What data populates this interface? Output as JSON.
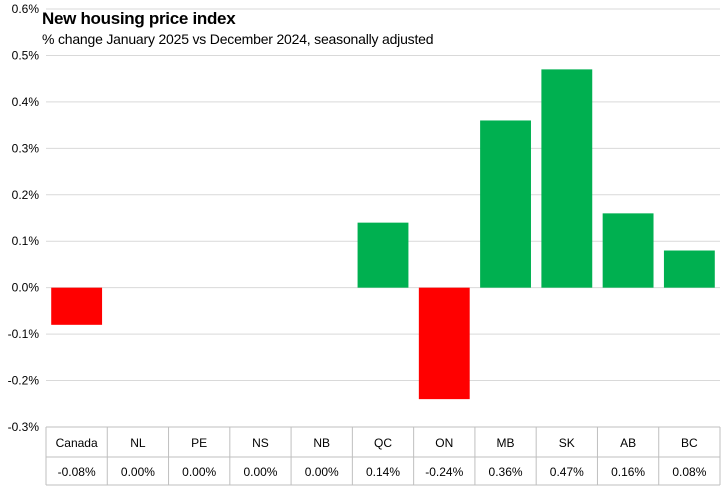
{
  "chart_data": {
    "type": "bar",
    "title": "New housing price index",
    "subtitle": "% change January 2025 vs December 2024, seasonally adjusted",
    "categories": [
      "Canada",
      "NL",
      "PE",
      "NS",
      "NB",
      "QC",
      "ON",
      "MB",
      "SK",
      "AB",
      "BC"
    ],
    "values": [
      -0.08,
      0.0,
      0.0,
      0.0,
      0.0,
      0.14,
      -0.24,
      0.36,
      0.47,
      0.16,
      0.08
    ],
    "value_labels": [
      "-0.08%",
      "0.00%",
      "0.00%",
      "0.00%",
      "0.00%",
      "0.14%",
      "-0.24%",
      "0.36%",
      "0.47%",
      "0.16%",
      "0.08%"
    ],
    "yticks": [
      0.6,
      0.5,
      0.4,
      0.3,
      0.2,
      0.1,
      0.0,
      -0.1,
      -0.2,
      -0.3
    ],
    "ytick_labels": [
      "0.6%",
      "0.5%",
      "0.4%",
      "0.3%",
      "0.2%",
      "0.1%",
      "0.0%",
      "-0.1%",
      "-0.2%",
      "-0.3%"
    ],
    "ylim": [
      -0.3,
      0.6
    ],
    "grid": true,
    "data_table": true,
    "colors": {
      "positive": "#00b050",
      "negative": "#ff0000",
      "grid": "#d9d9d9",
      "axis": "#bfbfbf"
    }
  }
}
